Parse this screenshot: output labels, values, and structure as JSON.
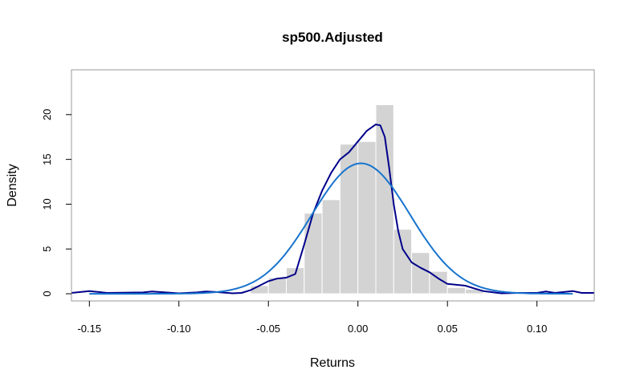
{
  "chart_data": {
    "type": "histogram",
    "title": "sp500.Adjusted",
    "xlabel": "Returns",
    "ylabel": "Density",
    "xlim": [
      -0.16,
      0.132
    ],
    "ylim": [
      -0.8,
      25.0
    ],
    "x_ticks": [
      -0.15,
      -0.1,
      -0.05,
      0.0,
      0.05,
      0.1
    ],
    "x_tick_labels": [
      "-0.15",
      "-0.10",
      "-0.05",
      "0.00",
      "0.05",
      "0.10"
    ],
    "y_ticks": [
      0,
      5,
      10,
      15,
      20
    ],
    "y_tick_labels": [
      "0",
      "5",
      "10",
      "15",
      "20"
    ],
    "grid": false,
    "legend": "none",
    "bars": [
      {
        "x0": -0.06,
        "x1": -0.05,
        "value": 0.9
      },
      {
        "x0": -0.05,
        "x1": -0.04,
        "value": 1.8
      },
      {
        "x0": -0.04,
        "x1": -0.03,
        "value": 2.9
      },
      {
        "x0": -0.03,
        "x1": -0.02,
        "value": 9.0
      },
      {
        "x0": -0.02,
        "x1": -0.01,
        "value": 10.5
      },
      {
        "x0": -0.01,
        "x1": 0.0,
        "value": 16.7
      },
      {
        "x0": 0.0,
        "x1": 0.01,
        "value": 17.0
      },
      {
        "x0": 0.01,
        "x1": 0.02,
        "value": 21.1
      },
      {
        "x0": 0.02,
        "x1": 0.03,
        "value": 7.2
      },
      {
        "x0": 0.03,
        "x1": 0.04,
        "value": 4.6
      },
      {
        "x0": 0.04,
        "x1": 0.05,
        "value": 2.5
      },
      {
        "x0": 0.05,
        "x1": 0.06,
        "value": 0.7
      },
      {
        "x0": 0.06,
        "x1": 0.07,
        "value": 0.5
      }
    ],
    "series": [
      {
        "kind": "density",
        "color": "#00008b",
        "x": [
          -0.16,
          -0.15,
          -0.14,
          -0.12,
          -0.115,
          -0.1,
          -0.09,
          -0.085,
          -0.08,
          -0.07,
          -0.065,
          -0.06,
          -0.055,
          -0.05,
          -0.045,
          -0.04,
          -0.035,
          -0.03,
          -0.025,
          -0.02,
          -0.015,
          -0.01,
          -0.005,
          0.0,
          0.005,
          0.01,
          0.0125,
          0.015,
          0.0175,
          0.02,
          0.0225,
          0.025,
          0.03,
          0.035,
          0.04,
          0.045,
          0.05,
          0.055,
          0.06,
          0.065,
          0.07,
          0.08,
          0.09,
          0.1,
          0.105,
          0.11,
          0.12,
          0.125,
          0.132
        ],
        "y": [
          0.1,
          0.3,
          0.1,
          0.15,
          0.25,
          0.05,
          0.15,
          0.25,
          0.2,
          0.05,
          0.1,
          0.4,
          0.9,
          1.4,
          1.7,
          1.8,
          2.2,
          5.5,
          9.0,
          11.5,
          13.5,
          15.0,
          15.8,
          17.0,
          18.2,
          18.9,
          18.8,
          17.5,
          14.0,
          10.0,
          7.0,
          5.0,
          3.5,
          2.9,
          2.4,
          1.7,
          1.1,
          1.0,
          0.9,
          0.6,
          0.3,
          0.05,
          0.1,
          0.1,
          0.25,
          0.1,
          0.3,
          0.1,
          0.1
        ]
      },
      {
        "kind": "normal",
        "color": "#1874cd",
        "mean": 0.0017,
        "sd": 0.0274,
        "x_range": [
          -0.15,
          0.12
        ]
      }
    ]
  }
}
